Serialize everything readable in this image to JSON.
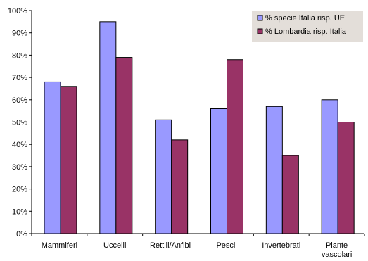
{
  "chart_data": {
    "type": "bar",
    "categories": [
      "Mammiferi",
      "Uccelli",
      "Rettili/Anfibi",
      "Pesci",
      "Invertebrati",
      "Piante vascolari"
    ],
    "series": [
      {
        "name": "% specie Italia risp. UE",
        "values": [
          68,
          95,
          51,
          56,
          57,
          60
        ],
        "color": "#9999FF"
      },
      {
        "name": "% Lombardia risp. Italia",
        "values": [
          66,
          79,
          42,
          78,
          35,
          50
        ],
        "color": "#993366"
      }
    ],
    "y_ticks": [
      "0%",
      "10%",
      "20%",
      "30%",
      "40%",
      "50%",
      "60%",
      "70%",
      "80%",
      "90%",
      "100%"
    ],
    "ylim": [
      0,
      100
    ],
    "grid": false,
    "legend_position": "top-right",
    "legend_background": "#E3DED9"
  }
}
